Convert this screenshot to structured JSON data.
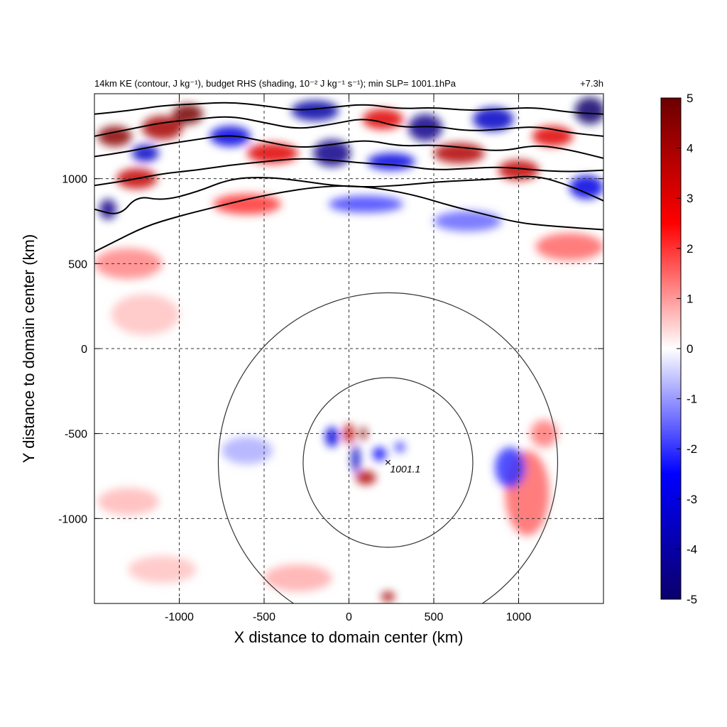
{
  "chart_data": {
    "type": "heatmap",
    "title": "14km KE (contour, J kg⁻¹), budget RHS (shading, 10⁻² J kg⁻¹ s⁻¹); min SLP= 1001.1hPa",
    "time_label": "+7.3h",
    "xlabel": "X distance to domain center (km)",
    "ylabel": "Y distance to domain center (km)",
    "xlim": [
      -1500,
      1500
    ],
    "ylim": [
      -1500,
      1500
    ],
    "xticks": [
      -1000,
      -500,
      0,
      500,
      1000
    ],
    "yticks": [
      -1000,
      -500,
      0,
      500,
      1000
    ],
    "xtick_labels": [
      "-1000",
      "-500",
      "0",
      "500",
      "1000"
    ],
    "ytick_labels": [
      "-1000",
      "-500",
      "0",
      "500",
      "1000"
    ],
    "grid": true,
    "colorbar": {
      "range": [
        -5,
        5
      ],
      "ticks": [
        5,
        4,
        3,
        2,
        1,
        0,
        -1,
        -2,
        -3,
        -4,
        -5
      ],
      "tick_labels": [
        "5",
        "4",
        "3",
        "2",
        "1",
        "0",
        "-1",
        "-2",
        "-3",
        "-4",
        "-5"
      ],
      "colormap": [
        "#0b006b",
        "#0000ff",
        "#ffffff",
        "#ff0000",
        "#6b0000"
      ],
      "position": "right"
    },
    "storm_center": {
      "x": 230,
      "y": -670,
      "label": "1001.1"
    },
    "range_rings_km": [
      500,
      1000
    ],
    "ke_contours": [
      {
        "x": [
          -1500,
          -1400,
          -1200,
          -1000,
          -800,
          -600,
          -400,
          -200,
          0,
          200,
          400,
          600,
          800,
          1000,
          1200,
          1500
        ],
        "y": [
          570,
          620,
          720,
          780,
          830,
          880,
          920,
          950,
          960,
          940,
          900,
          840,
          790,
          740,
          720,
          700
        ]
      },
      {
        "x": [
          -1500,
          -1350,
          -1250,
          -1100,
          -900,
          -700,
          -500,
          -300,
          -100,
          100,
          300,
          500,
          700,
          900,
          1100,
          1300,
          1500
        ],
        "y": [
          820,
          780,
          900,
          870,
          920,
          1000,
          1010,
          990,
          960,
          950,
          960,
          980,
          990,
          1000,
          1020,
          960,
          870
        ]
      },
      {
        "x": [
          -1500,
          -1300,
          -1100,
          -900,
          -700,
          -500,
          -300,
          -100,
          100,
          300,
          500,
          700,
          900,
          1100,
          1300,
          1500
        ],
        "y": [
          960,
          990,
          1030,
          1050,
          1080,
          1100,
          1120,
          1110,
          1090,
          1080,
          1050,
          1060,
          1070,
          1050,
          1040,
          1050
        ]
      },
      {
        "x": [
          -1500,
          -1300,
          -1100,
          -900,
          -700,
          -500,
          -300,
          -100,
          100,
          300,
          500,
          700,
          900,
          1100,
          1300,
          1500
        ],
        "y": [
          1130,
          1160,
          1200,
          1230,
          1260,
          1220,
          1180,
          1200,
          1230,
          1190,
          1200,
          1180,
          1160,
          1200,
          1170,
          1120
        ]
      },
      {
        "x": [
          -1500,
          -1300,
          -1100,
          -900,
          -700,
          -500,
          -300,
          -100,
          100,
          300,
          500,
          700,
          900,
          1100,
          1300,
          1500
        ],
        "y": [
          1250,
          1290,
          1330,
          1350,
          1370,
          1330,
          1290,
          1320,
          1360,
          1300,
          1310,
          1280,
          1290,
          1310,
          1270,
          1250
        ]
      },
      {
        "x": [
          -1500,
          -1300,
          -1100,
          -900,
          -700,
          -500,
          -300,
          -100,
          100,
          300,
          500,
          700,
          900,
          1100,
          1300,
          1500
        ],
        "y": [
          1380,
          1400,
          1430,
          1440,
          1450,
          1430,
          1400,
          1420,
          1440,
          1410,
          1420,
          1400,
          1410,
          1420,
          1390,
          1380
        ]
      }
    ],
    "shading_blobs": [
      {
        "x": -1380,
        "y": 1250,
        "rx": 100,
        "ry": 60,
        "v": 4.5
      },
      {
        "x": -1100,
        "y": 1300,
        "rx": 120,
        "ry": 70,
        "v": 4.0
      },
      {
        "x": -950,
        "y": 1380,
        "rx": 90,
        "ry": 60,
        "v": 4.8
      },
      {
        "x": -1250,
        "y": 1000,
        "rx": 120,
        "ry": 60,
        "v": 3.5
      },
      {
        "x": -1420,
        "y": 820,
        "rx": 50,
        "ry": 60,
        "v": -4.5
      },
      {
        "x": -1200,
        "y": 1150,
        "rx": 80,
        "ry": 50,
        "v": -3.5
      },
      {
        "x": -700,
        "y": 1250,
        "rx": 120,
        "ry": 60,
        "v": -3.0
      },
      {
        "x": -450,
        "y": 1150,
        "rx": 150,
        "ry": 60,
        "v": 3.0
      },
      {
        "x": -200,
        "y": 1400,
        "rx": 140,
        "ry": 60,
        "v": -4.0
      },
      {
        "x": -100,
        "y": 1150,
        "rx": 110,
        "ry": 80,
        "v": -4.5
      },
      {
        "x": 200,
        "y": 1350,
        "rx": 120,
        "ry": 60,
        "v": 3.0
      },
      {
        "x": 250,
        "y": 1100,
        "rx": 140,
        "ry": 50,
        "v": -3.0
      },
      {
        "x": 450,
        "y": 1300,
        "rx": 100,
        "ry": 80,
        "v": -4.5
      },
      {
        "x": 650,
        "y": 1150,
        "rx": 150,
        "ry": 60,
        "v": 3.8
      },
      {
        "x": 850,
        "y": 1350,
        "rx": 120,
        "ry": 70,
        "v": -3.5
      },
      {
        "x": 1000,
        "y": 1050,
        "rx": 120,
        "ry": 60,
        "v": 3.5
      },
      {
        "x": 1200,
        "y": 1250,
        "rx": 120,
        "ry": 60,
        "v": 3.0
      },
      {
        "x": 1420,
        "y": 1400,
        "rx": 90,
        "ry": 80,
        "v": -5.0
      },
      {
        "x": 1400,
        "y": 950,
        "rx": 100,
        "ry": 70,
        "v": -3.0
      },
      {
        "x": -600,
        "y": 850,
        "rx": 200,
        "ry": 60,
        "v": 2.0
      },
      {
        "x": 100,
        "y": 850,
        "rx": 220,
        "ry": 50,
        "v": -1.8
      },
      {
        "x": 700,
        "y": 750,
        "rx": 200,
        "ry": 60,
        "v": -1.5
      },
      {
        "x": -1300,
        "y": 500,
        "rx": 200,
        "ry": 90,
        "v": 1.2
      },
      {
        "x": 1300,
        "y": 600,
        "rx": 200,
        "ry": 80,
        "v": 1.5
      },
      {
        "x": -1200,
        "y": 200,
        "rx": 200,
        "ry": 120,
        "v": 0.6
      },
      {
        "x": -100,
        "y": -520,
        "rx": 40,
        "ry": 60,
        "v": -3.0
      },
      {
        "x": 0,
        "y": -500,
        "rx": 30,
        "ry": 60,
        "v": 3.5
      },
      {
        "x": 85,
        "y": -500,
        "rx": 20,
        "ry": 40,
        "v": 4.5
      },
      {
        "x": 40,
        "y": -650,
        "rx": 25,
        "ry": 80,
        "v": -3.5
      },
      {
        "x": 100,
        "y": -760,
        "rx": 60,
        "ry": 40,
        "v": 3.8
      },
      {
        "x": 180,
        "y": -620,
        "rx": 40,
        "ry": 40,
        "v": -2.5
      },
      {
        "x": 300,
        "y": -580,
        "rx": 30,
        "ry": 30,
        "v": -2.0
      },
      {
        "x": 230,
        "y": -1460,
        "rx": 40,
        "ry": 30,
        "v": 4.0
      },
      {
        "x": 1050,
        "y": -850,
        "rx": 130,
        "ry": 250,
        "v": 1.5
      },
      {
        "x": 950,
        "y": -700,
        "rx": 90,
        "ry": 120,
        "v": -2.0
      },
      {
        "x": 1150,
        "y": -500,
        "rx": 80,
        "ry": 80,
        "v": 1.3
      },
      {
        "x": -600,
        "y": -600,
        "rx": 150,
        "ry": 80,
        "v": -0.8
      },
      {
        "x": -1300,
        "y": -900,
        "rx": 180,
        "ry": 80,
        "v": 0.7
      },
      {
        "x": -1100,
        "y": -1300,
        "rx": 200,
        "ry": 80,
        "v": 0.6
      },
      {
        "x": -300,
        "y": -1350,
        "rx": 200,
        "ry": 80,
        "v": 0.8
      }
    ]
  }
}
